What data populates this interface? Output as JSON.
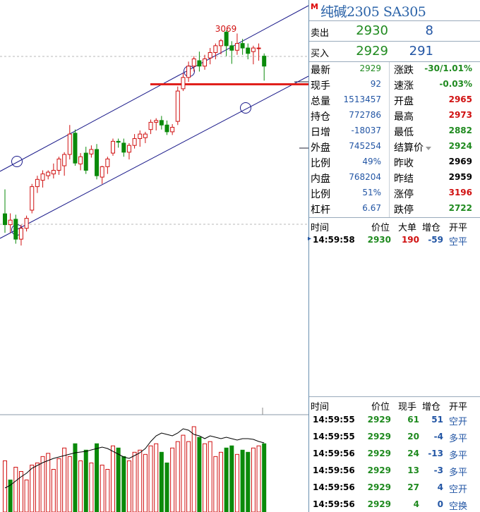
{
  "panel": {
    "title": "纯碱2305  SA305",
    "badge": "M",
    "sell": {
      "label": "卖出",
      "price": "2930",
      "volume": "8"
    },
    "buy": {
      "label": "买入",
      "price": "2929",
      "volume": "291"
    },
    "stats": [
      {
        "k": "最新",
        "v": "2929",
        "vc": "green",
        "k2": "涨跌",
        "v2": "-30/1.01%",
        "v2c": "green"
      },
      {
        "k": "现手",
        "v": "92",
        "vc": "blue",
        "k2": "速涨",
        "v2": "-0.03%",
        "v2c": "green"
      },
      {
        "k": "总量",
        "v": "1513457",
        "vc": "blue",
        "k2": "开盘",
        "v2": "2965",
        "v2c": "red"
      },
      {
        "k": "持仓",
        "v": "772786",
        "vc": "blue",
        "k2": "最高",
        "v2": "2973",
        "v2c": "red"
      },
      {
        "k": "日增",
        "v": "-18037",
        "vc": "blue",
        "k2": "最低",
        "v2": "2882",
        "v2c": "green"
      },
      {
        "k": "外盘",
        "v": "745254",
        "vc": "blue",
        "k2": "结算价",
        "v2": "2924",
        "v2c": "green"
      },
      {
        "k": "比例",
        "v": "49%",
        "vc": "blue",
        "k2": "昨收",
        "v2": "2969",
        "v2c": "black"
      },
      {
        "k": "内盘",
        "v": "768204",
        "vc": "blue",
        "k2": "昨结",
        "v2": "2959",
        "v2c": "black"
      },
      {
        "k": "比例",
        "v": "51%",
        "vc": "blue",
        "k2": "涨停",
        "v2": "3196",
        "v2c": "red"
      },
      {
        "k": "杠杆",
        "v": "6.67",
        "vc": "blue",
        "k2": "跌停",
        "v2": "2722",
        "v2c": "green"
      }
    ],
    "big_trades": {
      "headers": [
        "时间",
        "价位",
        "大单",
        "增仓",
        "开平"
      ],
      "rows": [
        {
          "time": "14:59:58",
          "price": "2930",
          "size": "190",
          "chg": "-59",
          "type": "空平"
        }
      ]
    },
    "trades": {
      "headers": [
        "时间",
        "价位",
        "现手",
        "增仓",
        "开平"
      ],
      "rows": [
        {
          "time": "14:59:55",
          "price": "2929",
          "size": "61",
          "chg": "51",
          "type": "空开"
        },
        {
          "time": "14:59:55",
          "price": "2929",
          "size": "20",
          "chg": "-4",
          "type": "多平"
        },
        {
          "time": "14:59:56",
          "price": "2929",
          "size": "24",
          "chg": "-13",
          "type": "多平"
        },
        {
          "time": "14:59:56",
          "price": "2929",
          "size": "13",
          "chg": "-3",
          "type": "多平"
        },
        {
          "time": "14:59:56",
          "price": "2929",
          "size": "27",
          "chg": "4",
          "type": "空开"
        },
        {
          "time": "14:59:56",
          "price": "2929",
          "size": "4",
          "chg": "0",
          "type": "空换"
        }
      ]
    }
  },
  "colors": {
    "up": "#d01010",
    "down": "#0a8a0a",
    "channel": "#1a1a8a",
    "support": "#e0201c",
    "signal": "#000000"
  },
  "chart_data": {
    "type": "candlestick",
    "peak_label": "3069",
    "ylim": [
      2515,
      3150
    ],
    "support_level": 2950,
    "candles": [
      {
        "o": 2664,
        "h": 2718,
        "l": 2622,
        "c": 2640
      },
      {
        "o": 2640,
        "h": 2665,
        "l": 2622,
        "c": 2650
      },
      {
        "o": 2652,
        "h": 2662,
        "l": 2598,
        "c": 2608
      },
      {
        "o": 2608,
        "h": 2640,
        "l": 2594,
        "c": 2632
      },
      {
        "o": 2632,
        "h": 2660,
        "l": 2625,
        "c": 2654
      },
      {
        "o": 2672,
        "h": 2730,
        "l": 2665,
        "c": 2724
      },
      {
        "o": 2724,
        "h": 2748,
        "l": 2710,
        "c": 2740
      },
      {
        "o": 2738,
        "h": 2760,
        "l": 2722,
        "c": 2752
      },
      {
        "o": 2748,
        "h": 2760,
        "l": 2740,
        "c": 2756
      },
      {
        "o": 2752,
        "h": 2775,
        "l": 2742,
        "c": 2760
      },
      {
        "o": 2760,
        "h": 2790,
        "l": 2750,
        "c": 2785
      },
      {
        "o": 2770,
        "h": 2800,
        "l": 2748,
        "c": 2795
      },
      {
        "o": 2795,
        "h": 2860,
        "l": 2784,
        "c": 2840
      },
      {
        "o": 2842,
        "h": 2850,
        "l": 2770,
        "c": 2776
      },
      {
        "o": 2774,
        "h": 2798,
        "l": 2760,
        "c": 2790
      },
      {
        "o": 2798,
        "h": 2812,
        "l": 2752,
        "c": 2760
      },
      {
        "o": 2796,
        "h": 2815,
        "l": 2788,
        "c": 2806
      },
      {
        "o": 2806,
        "h": 2818,
        "l": 2740,
        "c": 2748
      },
      {
        "o": 2745,
        "h": 2770,
        "l": 2730,
        "c": 2768
      },
      {
        "o": 2768,
        "h": 2790,
        "l": 2752,
        "c": 2785
      },
      {
        "o": 2798,
        "h": 2830,
        "l": 2792,
        "c": 2824
      },
      {
        "o": 2824,
        "h": 2830,
        "l": 2810,
        "c": 2822
      },
      {
        "o": 2820,
        "h": 2830,
        "l": 2790,
        "c": 2800
      },
      {
        "o": 2800,
        "h": 2820,
        "l": 2784,
        "c": 2815
      },
      {
        "o": 2815,
        "h": 2840,
        "l": 2808,
        "c": 2830
      },
      {
        "o": 2830,
        "h": 2848,
        "l": 2812,
        "c": 2840
      },
      {
        "o": 2832,
        "h": 2845,
        "l": 2820,
        "c": 2840
      },
      {
        "o": 2850,
        "h": 2872,
        "l": 2840,
        "c": 2866
      },
      {
        "o": 2866,
        "h": 2875,
        "l": 2848,
        "c": 2870
      },
      {
        "o": 2870,
        "h": 2880,
        "l": 2850,
        "c": 2860
      },
      {
        "o": 2860,
        "h": 2870,
        "l": 2838,
        "c": 2845
      },
      {
        "o": 2845,
        "h": 2862,
        "l": 2838,
        "c": 2855
      },
      {
        "o": 2868,
        "h": 2945,
        "l": 2860,
        "c": 2935
      },
      {
        "o": 2940,
        "h": 2975,
        "l": 2935,
        "c": 2965
      },
      {
        "o": 2965,
        "h": 3000,
        "l": 2955,
        "c": 2990
      },
      {
        "o": 2990,
        "h": 3012,
        "l": 2978,
        "c": 3006
      },
      {
        "o": 3002,
        "h": 3022,
        "l": 2978,
        "c": 2990
      },
      {
        "o": 2990,
        "h": 3015,
        "l": 2982,
        "c": 3006
      },
      {
        "o": 3008,
        "h": 3030,
        "l": 2994,
        "c": 3020
      },
      {
        "o": 3020,
        "h": 3040,
        "l": 3005,
        "c": 3035
      },
      {
        "o": 3035,
        "h": 3050,
        "l": 3016,
        "c": 3046
      },
      {
        "o": 3065,
        "h": 3069,
        "l": 3012,
        "c": 3035
      },
      {
        "o": 3035,
        "h": 3045,
        "l": 2995,
        "c": 3025
      },
      {
        "o": 3025,
        "h": 3062,
        "l": 3015,
        "c": 3040
      },
      {
        "o": 3040,
        "h": 3050,
        "l": 3015,
        "c": 3030
      },
      {
        "o": 3030,
        "h": 3040,
        "l": 3005,
        "c": 3018
      },
      {
        "o": 3022,
        "h": 3035,
        "l": 2994,
        "c": 3030
      },
      {
        "o": 3030,
        "h": 3040,
        "l": 3002,
        "c": 3030
      },
      {
        "o": 3012,
        "h": 3018,
        "l": 2958,
        "c": 2990
      }
    ],
    "volumes": [
      48,
      30,
      42,
      38,
      30,
      44,
      46,
      52,
      55,
      40,
      50,
      60,
      52,
      64,
      48,
      58,
      46,
      64,
      44,
      40,
      62,
      60,
      52,
      48,
      56,
      58,
      54,
      62,
      64,
      56,
      46,
      60,
      66,
      72,
      66,
      80,
      70,
      64,
      66,
      52,
      56,
      60,
      62,
      54,
      58,
      56,
      60,
      62,
      64
    ],
    "volume_colors": [
      "r",
      "g",
      "r",
      "r",
      "r",
      "r",
      "r",
      "r",
      "r",
      "r",
      "r",
      "r",
      "r",
      "g",
      "r",
      "g",
      "r",
      "g",
      "r",
      "r",
      "r",
      "g",
      "g",
      "r",
      "r",
      "r",
      "r",
      "r",
      "r",
      "g",
      "g",
      "r",
      "r",
      "r",
      "r",
      "r",
      "g",
      "r",
      "r",
      "r",
      "r",
      "g",
      "g",
      "r",
      "g",
      "g",
      "r",
      "r",
      "g"
    ],
    "oi_line": [
      34,
      38,
      44,
      50,
      55,
      62,
      66,
      70,
      73,
      76,
      78,
      80,
      82,
      84,
      85,
      86,
      88,
      90,
      92,
      90,
      86,
      82,
      78,
      76,
      80,
      84,
      90,
      100,
      108,
      112,
      110,
      108,
      112,
      118,
      116,
      110,
      108,
      104,
      108,
      106,
      104,
      106,
      104,
      102,
      104,
      104,
      103,
      100,
      98
    ]
  }
}
